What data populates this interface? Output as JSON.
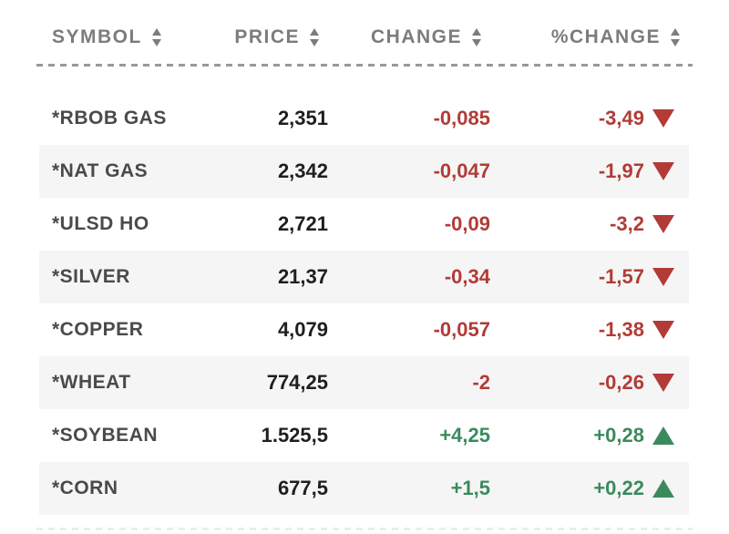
{
  "table": {
    "columns": [
      {
        "key": "symbol",
        "label": "SYMBOL"
      },
      {
        "key": "price",
        "label": "PRICE"
      },
      {
        "key": "change",
        "label": "CHANGE"
      },
      {
        "key": "pct_change",
        "label": "%CHANGE"
      }
    ],
    "rows": [
      {
        "symbol": "*RBOB GAS",
        "price": "2,351",
        "change": "-0,085",
        "pct_change": "-3,49",
        "direction": "down"
      },
      {
        "symbol": "*NAT GAS",
        "price": "2,342",
        "change": "-0,047",
        "pct_change": "-1,97",
        "direction": "down"
      },
      {
        "symbol": "*ULSD HO",
        "price": "2,721",
        "change": "-0,09",
        "pct_change": "-3,2",
        "direction": "down"
      },
      {
        "symbol": "*SILVER",
        "price": "21,37",
        "change": "-0,34",
        "pct_change": "-1,57",
        "direction": "down"
      },
      {
        "symbol": "*COPPER",
        "price": "4,079",
        "change": "-0,057",
        "pct_change": "-1,38",
        "direction": "down"
      },
      {
        "symbol": "*WHEAT",
        "price": "774,25",
        "change": "-2",
        "pct_change": "-0,26",
        "direction": "down"
      },
      {
        "symbol": "*SOYBEAN",
        "price": "1.525,5",
        "change": "+4,25",
        "pct_change": "+0,28",
        "direction": "up"
      },
      {
        "symbol": "*CORN",
        "price": "677,5",
        "change": "+1,5",
        "pct_change": "+0,22",
        "direction": "up"
      }
    ]
  },
  "icons": {
    "sort": "up-down-sort-arrows",
    "down_indicator": "red-triangle-down",
    "up_indicator": "green-triangle-up"
  },
  "colors": {
    "negative": "#b23b37",
    "positive": "#3b8a5e",
    "header_text": "#7c7c7c",
    "symbol_text": "#4a4a4a",
    "price_text": "#1f1f1f",
    "row_alt_bg": "#f5f5f5",
    "divider": "#999999"
  }
}
